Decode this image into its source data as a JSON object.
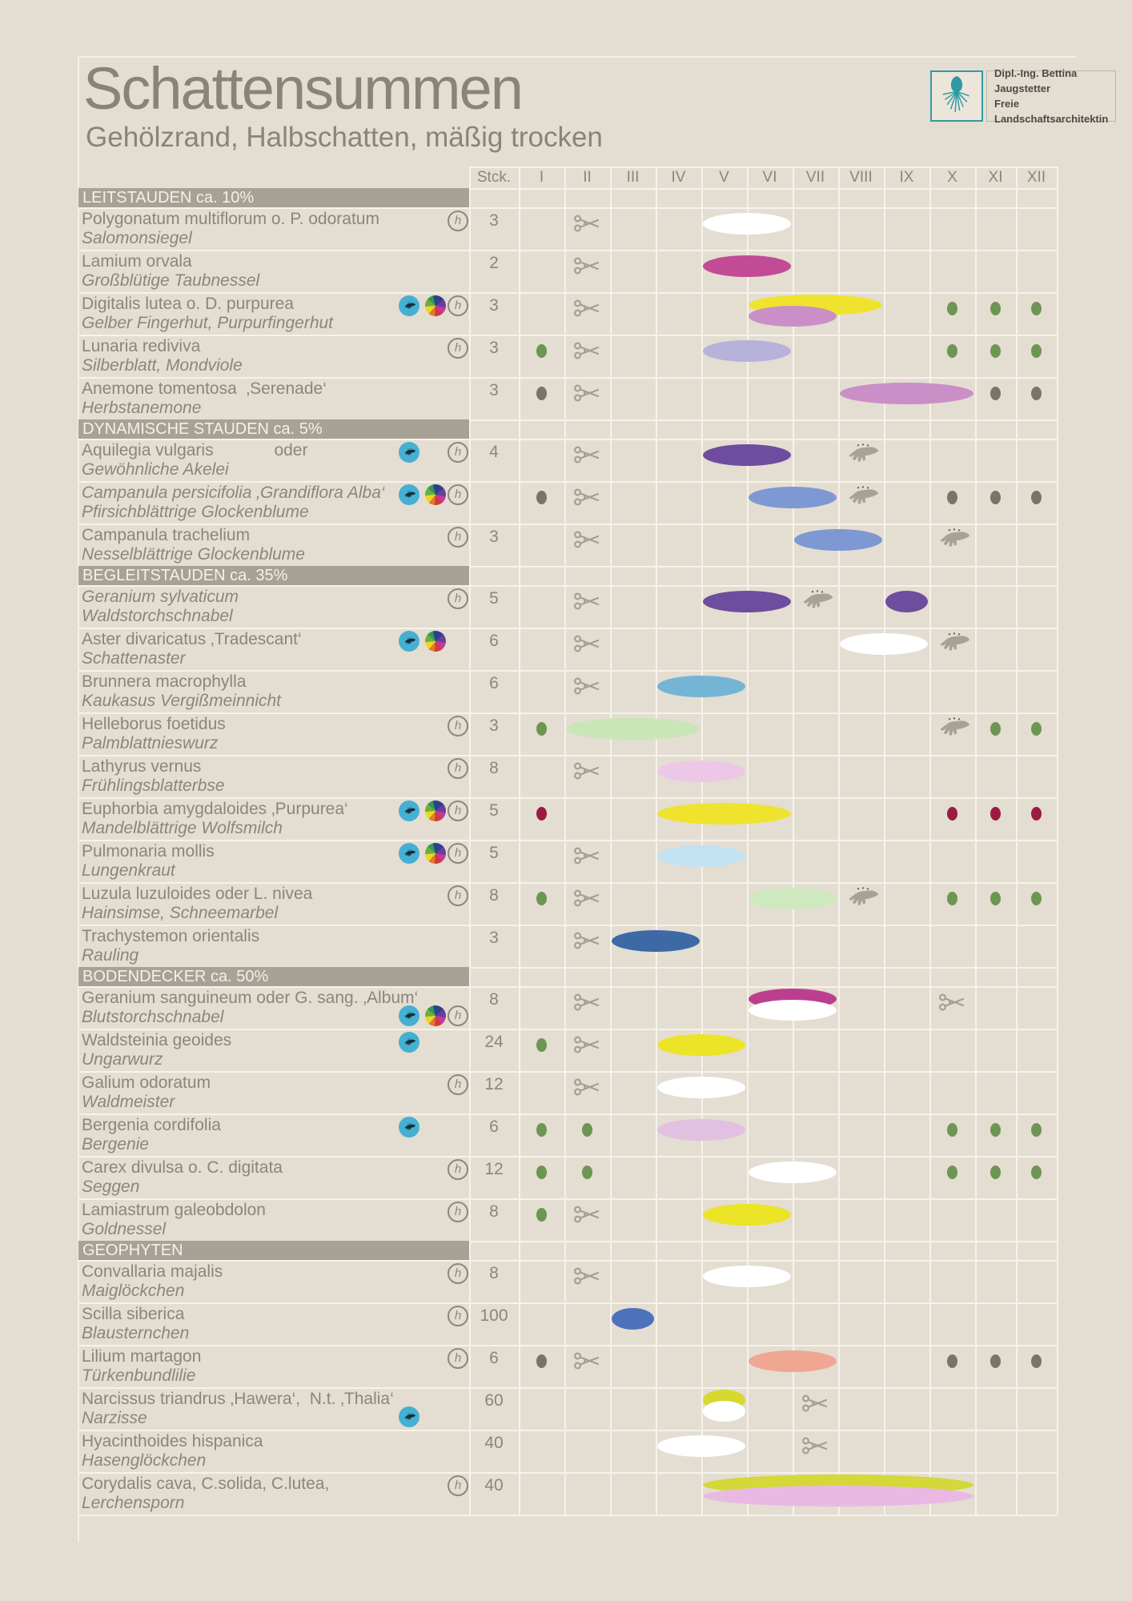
{
  "title": "Schattensummen",
  "subtitle": "Gehölzrand, Halbschatten, mäßig trocken",
  "logo": {
    "line1": "Dipl.-Ing. Bettina Jaugstetter",
    "line2": "Freie Landschaftsarchitektin",
    "flower_icon": "echinacea-flower",
    "accent_color": "#2f9aa3"
  },
  "legend_colors": {
    "background": "#e4ddd1",
    "grid": "#f6f3ec",
    "section_bar": "#a8a195",
    "text": "#8c867a",
    "scissors": "#a59e92",
    "hand": "#a8a195",
    "seed_badge": "#45b0d2",
    "dot_green": "#6d9553",
    "dot_gray": "#78746a",
    "dot_darkred": "#9b1b43"
  },
  "table": {
    "stck_label": "Stck.",
    "months": [
      "I",
      "II",
      "III",
      "IV",
      "V",
      "VI",
      "VII",
      "VIII",
      "IX",
      "X",
      "XI",
      "XII"
    ],
    "sections": [
      {
        "label": "LEITSTAUDEN ca. 10%",
        "rows": [
          {
            "latin": "Polygonatum multiflorum o. P. odoratum",
            "german": "Salomonsiegel",
            "qty": "3",
            "badges": {
              "h": true
            },
            "scissors": [
              2
            ],
            "blooms": [
              {
                "from": 5,
                "to": 6,
                "color": "#ffffff"
              }
            ]
          },
          {
            "latin": "Lamium orvala",
            "german": "Großblütige Taubnessel",
            "qty": "2",
            "scissors": [
              2
            ],
            "blooms": [
              {
                "from": 5,
                "to": 6,
                "color": "#c14b95"
              }
            ]
          },
          {
            "latin": "Digitalis lutea o. D. purpurea",
            "german": "Gelber Fingerhut, Purpurfingerhut",
            "qty": "3",
            "badges": {
              "seed": true,
              "wheel": true,
              "h": true
            },
            "scissors": [
              2
            ],
            "blooms": [
              {
                "from": 6,
                "to": 8,
                "color": "#f0e32e",
                "layer": 1
              },
              {
                "from": 6,
                "to": 7,
                "color": "#c98fc6",
                "layer": 2
              }
            ],
            "dots": [
              {
                "month": 10,
                "color": "green"
              },
              {
                "month": 11,
                "color": "green"
              },
              {
                "month": 12,
                "color": "green"
              }
            ]
          },
          {
            "latin": "Lunaria rediviva",
            "german": "Silberblatt, Mondviole",
            "qty": "3",
            "badges": {
              "h": true
            },
            "scissors": [
              2
            ],
            "blooms": [
              {
                "from": 5,
                "to": 6,
                "color": "#b6b2d9"
              }
            ],
            "dots": [
              {
                "month": 1,
                "color": "green"
              },
              {
                "month": 10,
                "color": "green"
              },
              {
                "month": 11,
                "color": "green"
              },
              {
                "month": 12,
                "color": "green"
              }
            ]
          },
          {
            "latin": "Anemone tomentosa  ‚Serenade‘",
            "german": "Herbstanemone",
            "qty": "3",
            "scissors": [
              2
            ],
            "blooms": [
              {
                "from": 8,
                "to": 10,
                "color": "#c98fc6"
              }
            ],
            "dots": [
              {
                "month": 1,
                "color": "gray"
              },
              {
                "month": 11,
                "color": "gray"
              },
              {
                "month": 12,
                "color": "gray"
              }
            ]
          }
        ]
      },
      {
        "label": "DYNAMISCHE STAUDEN ca. 5%",
        "rows": [
          {
            "latin": "Aquilegia vulgaris             oder",
            "german": "Gewöhnliche Akelei",
            "qty": "4",
            "badges": {
              "seed": true,
              "h": true
            },
            "scissors": [
              2
            ],
            "hand": [
              8
            ],
            "blooms": [
              {
                "from": 5,
                "to": 6,
                "color": "#6f4d9e"
              }
            ]
          },
          {
            "latin": "Campanula persicifolia ‚Grandiflora Alba‘",
            "latin_italic": true,
            "german": "Pfirsichblättrige Glockenblume",
            "qty": "",
            "badges": {
              "seed": true,
              "wheel": true,
              "h": true
            },
            "scissors": [
              2
            ],
            "hand": [
              8
            ],
            "blooms": [
              {
                "from": 6,
                "to": 7,
                "color": "#7d98d2"
              }
            ],
            "dots": [
              {
                "month": 1,
                "color": "gray"
              },
              {
                "month": 10,
                "color": "gray"
              },
              {
                "month": 11,
                "color": "gray"
              },
              {
                "month": 12,
                "color": "gray"
              }
            ]
          },
          {
            "latin": "Campanula trachelium",
            "german": "Nesselblättrige Glockenblume",
            "qty": "3",
            "badges": {
              "h": true
            },
            "scissors": [
              2
            ],
            "hand": [
              10
            ],
            "blooms": [
              {
                "from": 7,
                "to": 8,
                "color": "#7d98d2"
              }
            ]
          }
        ]
      },
      {
        "label": "BEGLEITSTAUDEN ca. 35%",
        "rows": [
          {
            "latin": "Geranium sylvaticum",
            "latin_italic": true,
            "german": "Waldstorchschnabel",
            "qty": "5",
            "badges": {
              "h": true
            },
            "scissors": [
              2
            ],
            "hand": [
              7
            ],
            "blooms": [
              {
                "from": 5,
                "to": 6,
                "color": "#6f4d9e"
              },
              {
                "from": 9,
                "to": 9,
                "color": "#6f4d9e"
              }
            ]
          },
          {
            "latin": "Aster divaricatus ‚Tradescant‘",
            "german": "Schattenaster",
            "qty": "6",
            "badges": {
              "seed": true,
              "wheel": true
            },
            "scissors": [
              2
            ],
            "hand": [
              10
            ],
            "blooms": [
              {
                "from": 8,
                "to": 9,
                "color": "#ffffff"
              }
            ]
          },
          {
            "latin": "Brunnera macrophylla",
            "german": "Kaukasus Vergißmeinnicht",
            "qty": "6",
            "scissors": [
              2
            ],
            "blooms": [
              {
                "from": 4,
                "to": 5,
                "color": "#74b5d6"
              }
            ]
          },
          {
            "latin": "Helleborus foetidus",
            "german": "Palmblattnieswurz",
            "qty": "3",
            "badges": {
              "h": true
            },
            "hand": [
              10
            ],
            "blooms": [
              {
                "from": 2,
                "to": 4,
                "color": "#c9e6b6"
              }
            ],
            "dots": [
              {
                "month": 1,
                "color": "green"
              },
              {
                "month": 11,
                "color": "green"
              },
              {
                "month": 12,
                "color": "green"
              }
            ]
          },
          {
            "latin": "Lathyrus vernus",
            "german": "Frühlingsblatterbse",
            "qty": "8",
            "badges": {
              "h": true
            },
            "scissors": [
              2
            ],
            "blooms": [
              {
                "from": 4,
                "to": 5,
                "color": "#edc7e8"
              }
            ]
          },
          {
            "latin": "Euphorbia amygdaloides ‚Purpurea‘",
            "german": "Mandelblättrige Wolfsmilch",
            "qty": "5",
            "badges": {
              "seed": true,
              "wheel": true,
              "h": true
            },
            "blooms": [
              {
                "from": 4,
                "to": 6,
                "color": "#f0e32e"
              }
            ],
            "dots": [
              {
                "month": 1,
                "color": "darkred"
              },
              {
                "month": 10,
                "color": "darkred"
              },
              {
                "month": 11,
                "color": "darkred"
              },
              {
                "month": 12,
                "color": "darkred"
              }
            ]
          },
          {
            "latin": "Pulmonaria mollis",
            "german": "Lungenkraut",
            "qty": "5",
            "badges": {
              "seed": true,
              "wheel": true,
              "h": true
            },
            "scissors": [
              2
            ],
            "blooms": [
              {
                "from": 4,
                "to": 5,
                "color": "#c3e2f3"
              }
            ]
          },
          {
            "latin": "Luzula luzuloides oder L. nivea",
            "german": "Hainsimse, Schneemarbel",
            "qty": "8",
            "badges": {
              "h": true
            },
            "scissors": [
              2
            ],
            "hand": [
              8
            ],
            "blooms": [
              {
                "from": 6,
                "to": 7,
                "color": "#cde9bd"
              }
            ],
            "dots": [
              {
                "month": 1,
                "color": "green"
              },
              {
                "month": 10,
                "color": "green"
              },
              {
                "month": 11,
                "color": "green"
              },
              {
                "month": 12,
                "color": "green"
              }
            ]
          },
          {
            "latin": "Trachystemon orientalis",
            "german": "Rauling",
            "qty": "3",
            "scissors": [
              2
            ],
            "blooms": [
              {
                "from": 3,
                "to": 4,
                "color": "#3d6aa5"
              }
            ]
          }
        ]
      },
      {
        "label": "BODENDECKER ca. 50%",
        "rows": [
          {
            "latin": "Geranium sanguineum oder G. sang. ‚Album‘",
            "german": "Blutstorchschnabel",
            "qty": "8",
            "badges": {
              "seed": true,
              "wheel": true,
              "h": true,
              "line": 2
            },
            "scissors": [
              2,
              10
            ],
            "blooms": [
              {
                "from": 6,
                "to": 7,
                "color": "#bb3f8e",
                "layer": 1
              },
              {
                "from": 6,
                "to": 7,
                "color": "#ffffff",
                "layer": 2
              }
            ]
          },
          {
            "latin": "Waldsteinia geoides",
            "german": "Ungarwurz",
            "qty": "24",
            "badges": {
              "seed": true
            },
            "scissors": [
              2
            ],
            "blooms": [
              {
                "from": 4,
                "to": 5,
                "color": "#ece426"
              }
            ],
            "dots": [
              {
                "month": 1,
                "color": "green"
              }
            ]
          },
          {
            "latin": "Galium odoratum",
            "german": "Waldmeister",
            "qty": "12",
            "badges": {
              "h": true
            },
            "scissors": [
              2
            ],
            "blooms": [
              {
                "from": 4,
                "to": 5,
                "color": "#ffffff"
              }
            ]
          },
          {
            "latin": "Bergenia cordifolia",
            "german": "Bergenie",
            "qty": "6",
            "badges": {
              "seed": true
            },
            "blooms": [
              {
                "from": 4,
                "to": 5,
                "color": "#e2c0e2"
              }
            ],
            "dots": [
              {
                "month": 1,
                "color": "green"
              },
              {
                "month": 2,
                "color": "green"
              },
              {
                "month": 10,
                "color": "green"
              },
              {
                "month": 11,
                "color": "green"
              },
              {
                "month": 12,
                "color": "green"
              }
            ]
          },
          {
            "latin": "Carex divulsa o. C. digitata",
            "german": "Seggen",
            "qty": "12",
            "badges": {
              "h": true
            },
            "blooms": [
              {
                "from": 6,
                "to": 7,
                "color": "#ffffff"
              }
            ],
            "dots": [
              {
                "month": 1,
                "color": "green"
              },
              {
                "month": 2,
                "color": "green"
              },
              {
                "month": 10,
                "color": "green"
              },
              {
                "month": 11,
                "color": "green"
              },
              {
                "month": 12,
                "color": "green"
              }
            ]
          },
          {
            "latin": "Lamiastrum galeobdolon",
            "german": "Goldnessel",
            "qty": "8",
            "badges": {
              "h": true
            },
            "scissors": [
              2
            ],
            "blooms": [
              {
                "from": 5,
                "to": 6,
                "color": "#ece426"
              }
            ],
            "dots": [
              {
                "month": 1,
                "color": "green"
              }
            ]
          }
        ]
      },
      {
        "label": "GEOPHYTEN",
        "rows": [
          {
            "latin": "Convallaria majalis",
            "german": "Maiglöckchen",
            "qty": "8",
            "badges": {
              "h": true
            },
            "scissors": [
              2
            ],
            "blooms": [
              {
                "from": 5,
                "to": 6,
                "color": "#ffffff"
              }
            ]
          },
          {
            "latin": "Scilla siberica",
            "german": "Blausternchen",
            "qty": "100",
            "badges": {
              "h": true
            },
            "blooms": [
              {
                "from": 3,
                "to": 3,
                "color": "#4d72bd"
              }
            ]
          },
          {
            "latin": "Lilium martagon",
            "german": "Türkenbundlilie",
            "qty": "6",
            "badges": {
              "h": true
            },
            "scissors": [
              2
            ],
            "blooms": [
              {
                "from": 6,
                "to": 7,
                "color": "#efa794"
              }
            ],
            "dots": [
              {
                "month": 1,
                "color": "gray"
              },
              {
                "month": 10,
                "color": "gray"
              },
              {
                "month": 11,
                "color": "gray"
              },
              {
                "month": 12,
                "color": "gray"
              }
            ]
          },
          {
            "latin": "Narcissus triandrus ‚Hawera‘,  N.t. ‚Thalia‘",
            "german": "Narzisse",
            "qty": "60",
            "badges": {
              "seed": true,
              "line": 2
            },
            "scissors": [
              7
            ],
            "blooms": [
              {
                "from": 5,
                "to": 5,
                "color": "#d7d92f",
                "layer": 1
              },
              {
                "from": 5,
                "to": 5,
                "color": "#ffffff",
                "layer": 2
              }
            ]
          },
          {
            "latin": "Hyacinthoides hispanica",
            "german": "Hasenglöckchen",
            "qty": "40",
            "scissors": [
              7
            ],
            "blooms": [
              {
                "from": 4,
                "to": 5,
                "color": "#ffffff"
              }
            ]
          },
          {
            "latin": "Corydalis cava, C.solida, C.lutea,",
            "german": "Lerchensporn",
            "qty": "40",
            "badges": {
              "h": true
            },
            "blooms": [
              {
                "from": 5,
                "to": 10,
                "color": "#d4d838",
                "layer": 1
              },
              {
                "from": 5,
                "to": 10,
                "color": "#e9b9e4",
                "layer": 2
              }
            ]
          }
        ]
      }
    ]
  }
}
